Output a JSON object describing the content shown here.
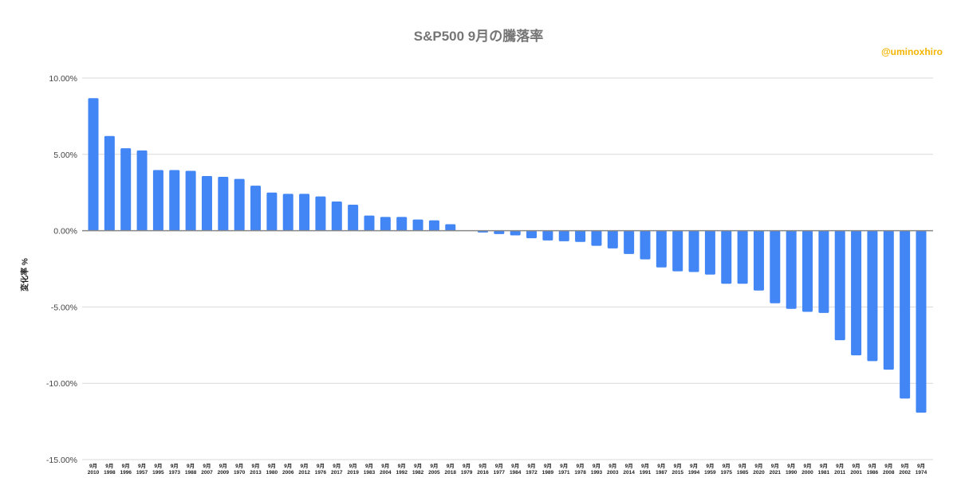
{
  "chart_data": {
    "type": "bar",
    "title": "S&P500  9月の騰落率",
    "watermark": "@uminoxhiro",
    "xlabel": "",
    "ylabel": "変化率 %",
    "ylim": [
      -15,
      10
    ],
    "yticks": [
      "10.00%",
      "5.00%",
      "0.00%",
      "-5.00%",
      "-10.00%",
      "-15.00%"
    ],
    "ytick_values": [
      10,
      5,
      0,
      -5,
      -10,
      -15
    ],
    "grid": true,
    "legend": "none",
    "bar_color": "#4285f4",
    "category_month_label": "9月",
    "categories": [
      "2010",
      "1998",
      "1996",
      "1957",
      "1995",
      "1973",
      "1988",
      "2007",
      "2009",
      "1970",
      "2013",
      "1980",
      "2006",
      "2012",
      "1976",
      "2017",
      "2019",
      "1983",
      "2004",
      "1992",
      "1982",
      "2005",
      "2018",
      "1979",
      "2016",
      "1977",
      "1984",
      "1972",
      "1989",
      "1971",
      "1978",
      "1993",
      "2003",
      "2014",
      "1991",
      "1987",
      "2015",
      "1994",
      "1959",
      "1975",
      "1985",
      "2020",
      "2021",
      "1990",
      "2000",
      "1981",
      "2011",
      "2001",
      "1986",
      "2008",
      "2002",
      "1974"
    ],
    "values": [
      8.68,
      6.2,
      5.4,
      5.26,
      3.97,
      3.97,
      3.92,
      3.58,
      3.53,
      3.39,
      2.95,
      2.5,
      2.41,
      2.41,
      2.24,
      1.91,
      1.7,
      0.99,
      0.9,
      0.9,
      0.73,
      0.68,
      0.42,
      0.0,
      -0.12,
      -0.22,
      -0.31,
      -0.5,
      -0.64,
      -0.69,
      -0.74,
      -0.99,
      -1.16,
      -1.53,
      -1.88,
      -2.41,
      -2.66,
      -2.71,
      -2.88,
      -3.48,
      -3.48,
      -3.92,
      -4.76,
      -5.12,
      -5.32,
      -5.39,
      -7.18,
      -8.17,
      -8.55,
      -9.11,
      -11.0,
      -11.93
    ]
  }
}
